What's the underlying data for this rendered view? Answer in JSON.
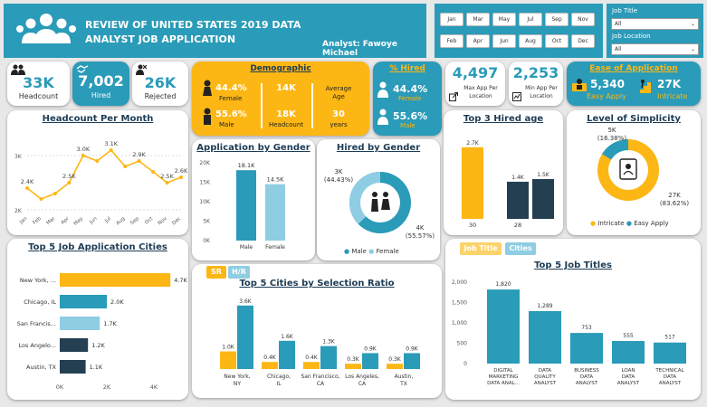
{
  "header": {
    "title_line1": "REVIEW OF UNITED STATES 2019 DATA",
    "title_line2": "ANALYST JOB APPLICATION",
    "analyst": "Analyst: Fawoye Michael",
    "icon": "people-group-icon"
  },
  "months": [
    "Jan",
    "Mar",
    "May",
    "Jul",
    "Sep",
    "Nov",
    "Feb",
    "Apr",
    "Jun",
    "Aug",
    "Oct",
    "Dec"
  ],
  "filters": {
    "job_title_label": "Job Title",
    "job_title_value": "All",
    "job_location_label": "Job Location",
    "job_location_value": "All"
  },
  "kpis": {
    "headcount_value": "33K",
    "headcount_label": "Headcount",
    "hired_value": "7,002",
    "hired_label": "Hired",
    "rejected_value": "26K",
    "rejected_label": "Rejected"
  },
  "demographic": {
    "title": "Demographic",
    "female_pct": "44.4%",
    "female_label": "Female",
    "male_pct": "55.6%",
    "male_label": "Male",
    "hc1": "14K",
    "hc2": "18K",
    "hc_label": "Headcount",
    "avg_age_label": "Average Age",
    "avg_age_value": "30",
    "years_label": "years"
  },
  "pct_hired": {
    "title": "% Hired",
    "female_pct": "44.4%",
    "female_label": "Female",
    "male_pct": "55.6%",
    "male_label": "Male"
  },
  "app_per_location": {
    "max_value": "4,497",
    "max_label1": "Max App Per",
    "max_label2": "Location",
    "min_value": "2,253",
    "min_label1": "Min App Per",
    "min_label2": "Location"
  },
  "ease": {
    "title": "Ease of Application",
    "easy_value": "5,340",
    "easy_label": "Easy Apply",
    "intricate_value": "27K",
    "intricate_label": "Intricate"
  },
  "colors": {
    "teal": "#2a9bb8",
    "yellow": "#fcb714",
    "navy": "#243f52",
    "light_blue": "#8fcde3"
  },
  "headcount_month": {
    "title": "Headcount Per Month",
    "y_ticks": [
      "3K",
      "2K"
    ],
    "chart_data": {
      "type": "line",
      "categories": [
        "Jan",
        "Feb",
        "Mar",
        "Apr",
        "May",
        "Jun",
        "Jul",
        "Aug",
        "Sep",
        "Oct",
        "Nov",
        "Dec"
      ],
      "values": [
        2.4,
        2.2,
        2.3,
        2.5,
        3.0,
        2.9,
        3.1,
        2.8,
        2.9,
        2.7,
        2.5,
        2.6
      ],
      "labels": [
        "2.4K",
        "",
        "",
        "2.5K",
        "3.0K",
        "",
        "3.1K",
        "",
        "2.9K",
        "",
        "2.5K",
        "2.6K"
      ],
      "ylim": [
        2,
        3.4
      ]
    }
  },
  "app_gender": {
    "title": "Application by Gender",
    "y_ticks": [
      "20K",
      "15K",
      "10K",
      "5K",
      "0K"
    ],
    "chart_data": {
      "type": "bar",
      "categories": [
        "Male",
        "Female"
      ],
      "values": [
        18.1,
        14.5
      ],
      "labels": [
        "18.1K",
        "14.5K"
      ],
      "ylim": [
        0,
        20
      ]
    }
  },
  "hired_gender": {
    "title": "Hired by Gender",
    "female_label1": "3K",
    "female_label2": "(44.43%)",
    "male_label1": "4K",
    "male_label2": "(55.57%)",
    "legend_male": "Male",
    "legend_female": "Female",
    "chart_data": {
      "type": "pie",
      "categories": [
        "Male",
        "Female"
      ],
      "values": [
        55.57,
        44.43
      ]
    }
  },
  "hired_age": {
    "title": "Top 3 Hired age",
    "chart_data": {
      "type": "bar",
      "categories": [
        "30",
        "28",
        ""
      ],
      "values": [
        2.7,
        1.4,
        1.5
      ],
      "labels": [
        "2.7K",
        "1.4K",
        "1.5K"
      ],
      "ylim": [
        0,
        3
      ]
    }
  },
  "simplicity": {
    "title": "Level of Simplicity",
    "easy_label1": "5K",
    "easy_label2": "(16.38%)",
    "intricate_label1": "27K",
    "intricate_label2": "(83.62%)",
    "legend_intricate": "Intricate",
    "legend_easy": "Easy Apply",
    "chart_data": {
      "type": "pie",
      "categories": [
        "Intricate",
        "Easy Apply"
      ],
      "values": [
        83.62,
        16.38
      ]
    }
  },
  "cities": {
    "title": "Top 5 Job Application Cities",
    "x_ticks": [
      "0K",
      "2K",
      "4K"
    ],
    "chart_data": {
      "type": "bar",
      "categories": [
        "New York, ...",
        "Chicago, IL",
        "San Francis...",
        "Los Angelo...",
        "Austin, TX"
      ],
      "values": [
        4.7,
        2.0,
        1.7,
        1.2,
        1.1
      ],
      "labels": [
        "4.7K",
        "2.0K",
        "1.7K",
        "1.2K",
        "1.1K"
      ],
      "xlim": [
        0,
        5
      ]
    }
  },
  "selection": {
    "title": "Top 5 Cities by Selection Ratio",
    "btn_sr": "SR",
    "btn_hr": "H/R",
    "chart_data": {
      "type": "bar",
      "categories": [
        "New York, NY",
        "Chicago, IL",
        "San Francisco, CA",
        "Los Angeles, CA",
        "Austin, TX"
      ],
      "series": [
        {
          "values": [
            1.0,
            0.4,
            0.4,
            0.3,
            0.3
          ],
          "labels": [
            "1.0K",
            "0.4K",
            "0.4K",
            "0.3K",
            "0.3K"
          ]
        },
        {
          "values": [
            3.6,
            1.6,
            1.3,
            0.9,
            0.9
          ],
          "labels": [
            "3.6K",
            "1.6K",
            "1.3K",
            "0.9K",
            "0.9K"
          ]
        }
      ],
      "ylim": [
        0,
        4
      ]
    }
  },
  "job_titles": {
    "title": "Top 5 Job Titles",
    "btn_job": "Job Title",
    "btn_cities": "Cities",
    "y_ticks": [
      "2,000",
      "1,500",
      "1,000",
      "500",
      "0"
    ],
    "chart_data": {
      "type": "bar",
      "categories": [
        "DIGITAL MARKETING DATA ANAL...",
        "DATA QUALITY ANALYST",
        "BUSINESS DATA ANALYST",
        "LOAN DATA ANALYST",
        "TECHNICAL DATA ANALYST"
      ],
      "values": [
        1820,
        1289,
        753,
        555,
        517
      ],
      "labels": [
        "1,820",
        "1,289",
        "753",
        "555",
        "517"
      ],
      "ylim": [
        0,
        2000
      ]
    }
  }
}
